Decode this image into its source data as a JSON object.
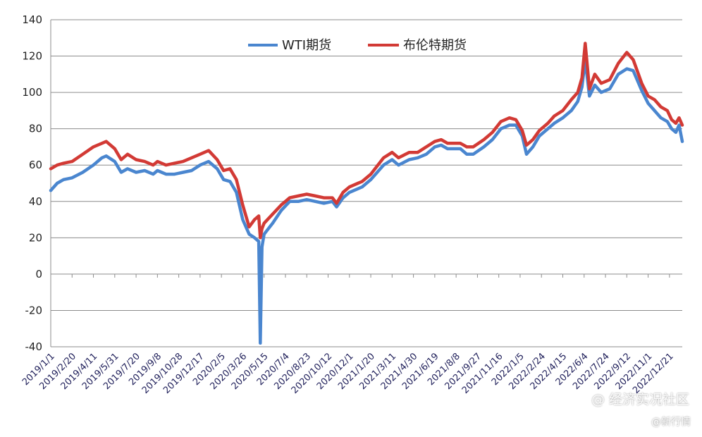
{
  "chart_data": {
    "type": "line",
    "ylim": [
      -40,
      140
    ],
    "yticks": [
      -40,
      -20,
      0,
      20,
      40,
      60,
      80,
      100,
      120,
      140
    ],
    "xtick_labels": [
      "2019/1/1",
      "2019/2/20",
      "2019/4/11",
      "2019/5/31",
      "2019/7/20",
      "2019/9/8",
      "2019/10/28",
      "2019/12/17",
      "2020/2/5",
      "2020/3/26",
      "2020/5/15",
      "2020/7/4",
      "2020/8/23",
      "2020/10/12",
      "2020/12/1",
      "2021/1/20",
      "2021/3/11",
      "2021/4/30",
      "2021/6/19",
      "2021/8/8",
      "2021/9/27",
      "2021/11/16",
      "2022/1/5",
      "2022/2/24",
      "2022/4/15",
      "2022/6/4",
      "2022/7/24",
      "2022/9/12",
      "2022/11/1",
      "2022/12/21"
    ],
    "grid": true,
    "legend_position": "top-center",
    "x_index_max": 29.6,
    "series": [
      {
        "name": "WTI期货",
        "color": "#4a86cf",
        "points": [
          [
            0,
            46
          ],
          [
            0.3,
            50
          ],
          [
            0.6,
            52
          ],
          [
            1,
            53
          ],
          [
            1.5,
            56
          ],
          [
            2,
            60
          ],
          [
            2.4,
            64
          ],
          [
            2.6,
            65
          ],
          [
            3,
            62
          ],
          [
            3.3,
            56
          ],
          [
            3.6,
            58
          ],
          [
            4,
            56
          ],
          [
            4.4,
            57
          ],
          [
            4.8,
            55
          ],
          [
            5,
            57
          ],
          [
            5.4,
            55
          ],
          [
            5.8,
            55
          ],
          [
            6.2,
            56
          ],
          [
            6.6,
            57
          ],
          [
            7,
            60
          ],
          [
            7.4,
            62
          ],
          [
            7.8,
            58
          ],
          [
            8.1,
            52
          ],
          [
            8.4,
            51
          ],
          [
            8.7,
            45
          ],
          [
            9,
            30
          ],
          [
            9.3,
            22
          ],
          [
            9.55,
            20
          ],
          [
            9.75,
            18
          ],
          [
            9.82,
            -38
          ],
          [
            9.9,
            15
          ],
          [
            10.0,
            22
          ],
          [
            10.4,
            28
          ],
          [
            10.8,
            35
          ],
          [
            11.2,
            40
          ],
          [
            11.6,
            40
          ],
          [
            12,
            41
          ],
          [
            12.4,
            40
          ],
          [
            12.8,
            39
          ],
          [
            13.2,
            40
          ],
          [
            13.4,
            37
          ],
          [
            13.7,
            42
          ],
          [
            14,
            45
          ],
          [
            14.6,
            48
          ],
          [
            15,
            52
          ],
          [
            15.6,
            60
          ],
          [
            16,
            63
          ],
          [
            16.3,
            60
          ],
          [
            16.8,
            63
          ],
          [
            17.2,
            64
          ],
          [
            17.6,
            66
          ],
          [
            18,
            70
          ],
          [
            18.3,
            71
          ],
          [
            18.6,
            69
          ],
          [
            19.2,
            69
          ],
          [
            19.5,
            66
          ],
          [
            19.8,
            66
          ],
          [
            20.3,
            70
          ],
          [
            20.7,
            74
          ],
          [
            21.1,
            80
          ],
          [
            21.5,
            82
          ],
          [
            21.8,
            82
          ],
          [
            22.1,
            76
          ],
          [
            22.3,
            66
          ],
          [
            22.6,
            70
          ],
          [
            22.9,
            76
          ],
          [
            23.3,
            80
          ],
          [
            23.6,
            83
          ],
          [
            24,
            86
          ],
          [
            24.4,
            90
          ],
          [
            24.7,
            95
          ],
          [
            24.9,
            103
          ],
          [
            25.05,
            118
          ],
          [
            25.25,
            98
          ],
          [
            25.5,
            104
          ],
          [
            25.8,
            100
          ],
          [
            26.2,
            102
          ],
          [
            26.6,
            110
          ],
          [
            27,
            113
          ],
          [
            27.3,
            112
          ],
          [
            27.7,
            101
          ],
          [
            28,
            94
          ],
          [
            28.3,
            90
          ],
          [
            28.6,
            86
          ],
          [
            28.9,
            84
          ],
          [
            29.1,
            80
          ],
          [
            29.3,
            78
          ],
          [
            29.45,
            82
          ],
          [
            29.6,
            73
          ]
        ]
      },
      {
        "name": "布伦特期货",
        "color": "#d23a35",
        "points": [
          [
            0,
            58
          ],
          [
            0.3,
            60
          ],
          [
            0.6,
            61
          ],
          [
            1,
            62
          ],
          [
            1.5,
            66
          ],
          [
            2,
            70
          ],
          [
            2.4,
            72
          ],
          [
            2.6,
            73
          ],
          [
            3,
            69
          ],
          [
            3.3,
            63
          ],
          [
            3.6,
            66
          ],
          [
            4,
            63
          ],
          [
            4.4,
            62
          ],
          [
            4.8,
            60
          ],
          [
            5,
            62
          ],
          [
            5.4,
            60
          ],
          [
            5.8,
            61
          ],
          [
            6.2,
            62
          ],
          [
            6.6,
            64
          ],
          [
            7,
            66
          ],
          [
            7.4,
            68
          ],
          [
            7.8,
            63
          ],
          [
            8.1,
            57
          ],
          [
            8.4,
            58
          ],
          [
            8.7,
            52
          ],
          [
            9,
            38
          ],
          [
            9.3,
            26
          ],
          [
            9.55,
            30
          ],
          [
            9.75,
            32
          ],
          [
            9.82,
            20
          ],
          [
            9.9,
            25
          ],
          [
            10.0,
            28
          ],
          [
            10.4,
            33
          ],
          [
            10.8,
            38
          ],
          [
            11.2,
            42
          ],
          [
            11.6,
            43
          ],
          [
            12,
            44
          ],
          [
            12.4,
            43
          ],
          [
            12.8,
            42
          ],
          [
            13.2,
            42
          ],
          [
            13.4,
            39
          ],
          [
            13.7,
            45
          ],
          [
            14,
            48
          ],
          [
            14.6,
            51
          ],
          [
            15,
            55
          ],
          [
            15.6,
            64
          ],
          [
            16,
            67
          ],
          [
            16.3,
            64
          ],
          [
            16.8,
            67
          ],
          [
            17.2,
            67
          ],
          [
            17.6,
            70
          ],
          [
            18,
            73
          ],
          [
            18.3,
            74
          ],
          [
            18.6,
            72
          ],
          [
            19.2,
            72
          ],
          [
            19.5,
            70
          ],
          [
            19.8,
            70
          ],
          [
            20.3,
            74
          ],
          [
            20.7,
            78
          ],
          [
            21.1,
            84
          ],
          [
            21.5,
            86
          ],
          [
            21.8,
            85
          ],
          [
            22.1,
            79
          ],
          [
            22.3,
            71
          ],
          [
            22.6,
            74
          ],
          [
            22.9,
            79
          ],
          [
            23.3,
            83
          ],
          [
            23.6,
            87
          ],
          [
            24,
            90
          ],
          [
            24.4,
            96
          ],
          [
            24.7,
            100
          ],
          [
            24.9,
            108
          ],
          [
            25.05,
            127
          ],
          [
            25.25,
            102
          ],
          [
            25.5,
            110
          ],
          [
            25.8,
            105
          ],
          [
            26.2,
            107
          ],
          [
            26.6,
            116
          ],
          [
            27,
            122
          ],
          [
            27.3,
            118
          ],
          [
            27.7,
            105
          ],
          [
            28,
            98
          ],
          [
            28.3,
            96
          ],
          [
            28.6,
            92
          ],
          [
            28.9,
            90
          ],
          [
            29.1,
            85
          ],
          [
            29.3,
            83
          ],
          [
            29.45,
            86
          ],
          [
            29.6,
            82
          ]
        ]
      }
    ]
  },
  "watermark": {
    "line1": "@ 经济实况社区",
    "line2": "@新行情"
  }
}
